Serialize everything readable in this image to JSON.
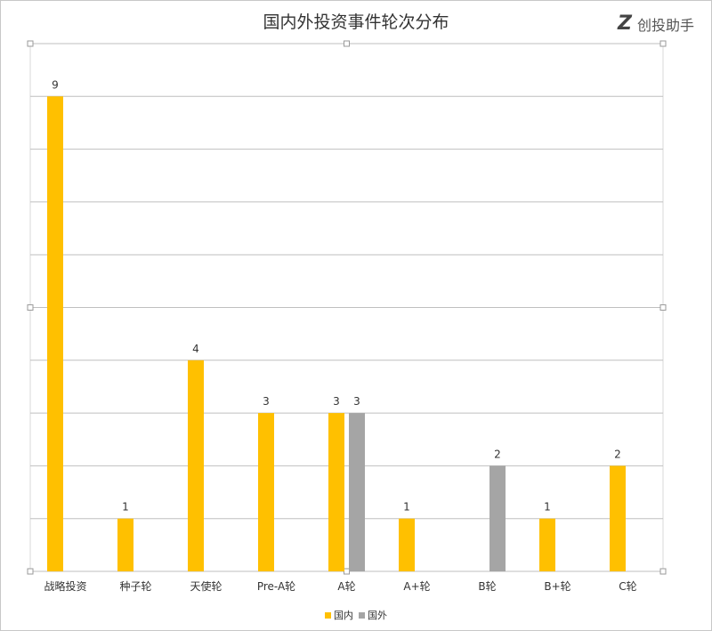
{
  "brand": {
    "mark": "Z",
    "name": "创投助手"
  },
  "colors": {
    "domestic": "#FFC000",
    "foreign": "#A5A5A5",
    "grid": "#BFBFBF"
  },
  "chart_data": {
    "type": "bar",
    "title": "国内外投资事件轮次分布",
    "categories": [
      "战略投资",
      "种子轮",
      "天使轮",
      "Pre-A轮",
      "A轮",
      "A+轮",
      "B轮",
      "B+轮",
      "C轮"
    ],
    "series": [
      {
        "name": "国内",
        "values": [
          9,
          1,
          4,
          3,
          3,
          1,
          null,
          1,
          2
        ]
      },
      {
        "name": "国外",
        "values": [
          null,
          null,
          null,
          null,
          3,
          null,
          2,
          null,
          null
        ]
      }
    ],
    "ylim": [
      0,
      10
    ],
    "grid": true,
    "legend": "bottom"
  }
}
